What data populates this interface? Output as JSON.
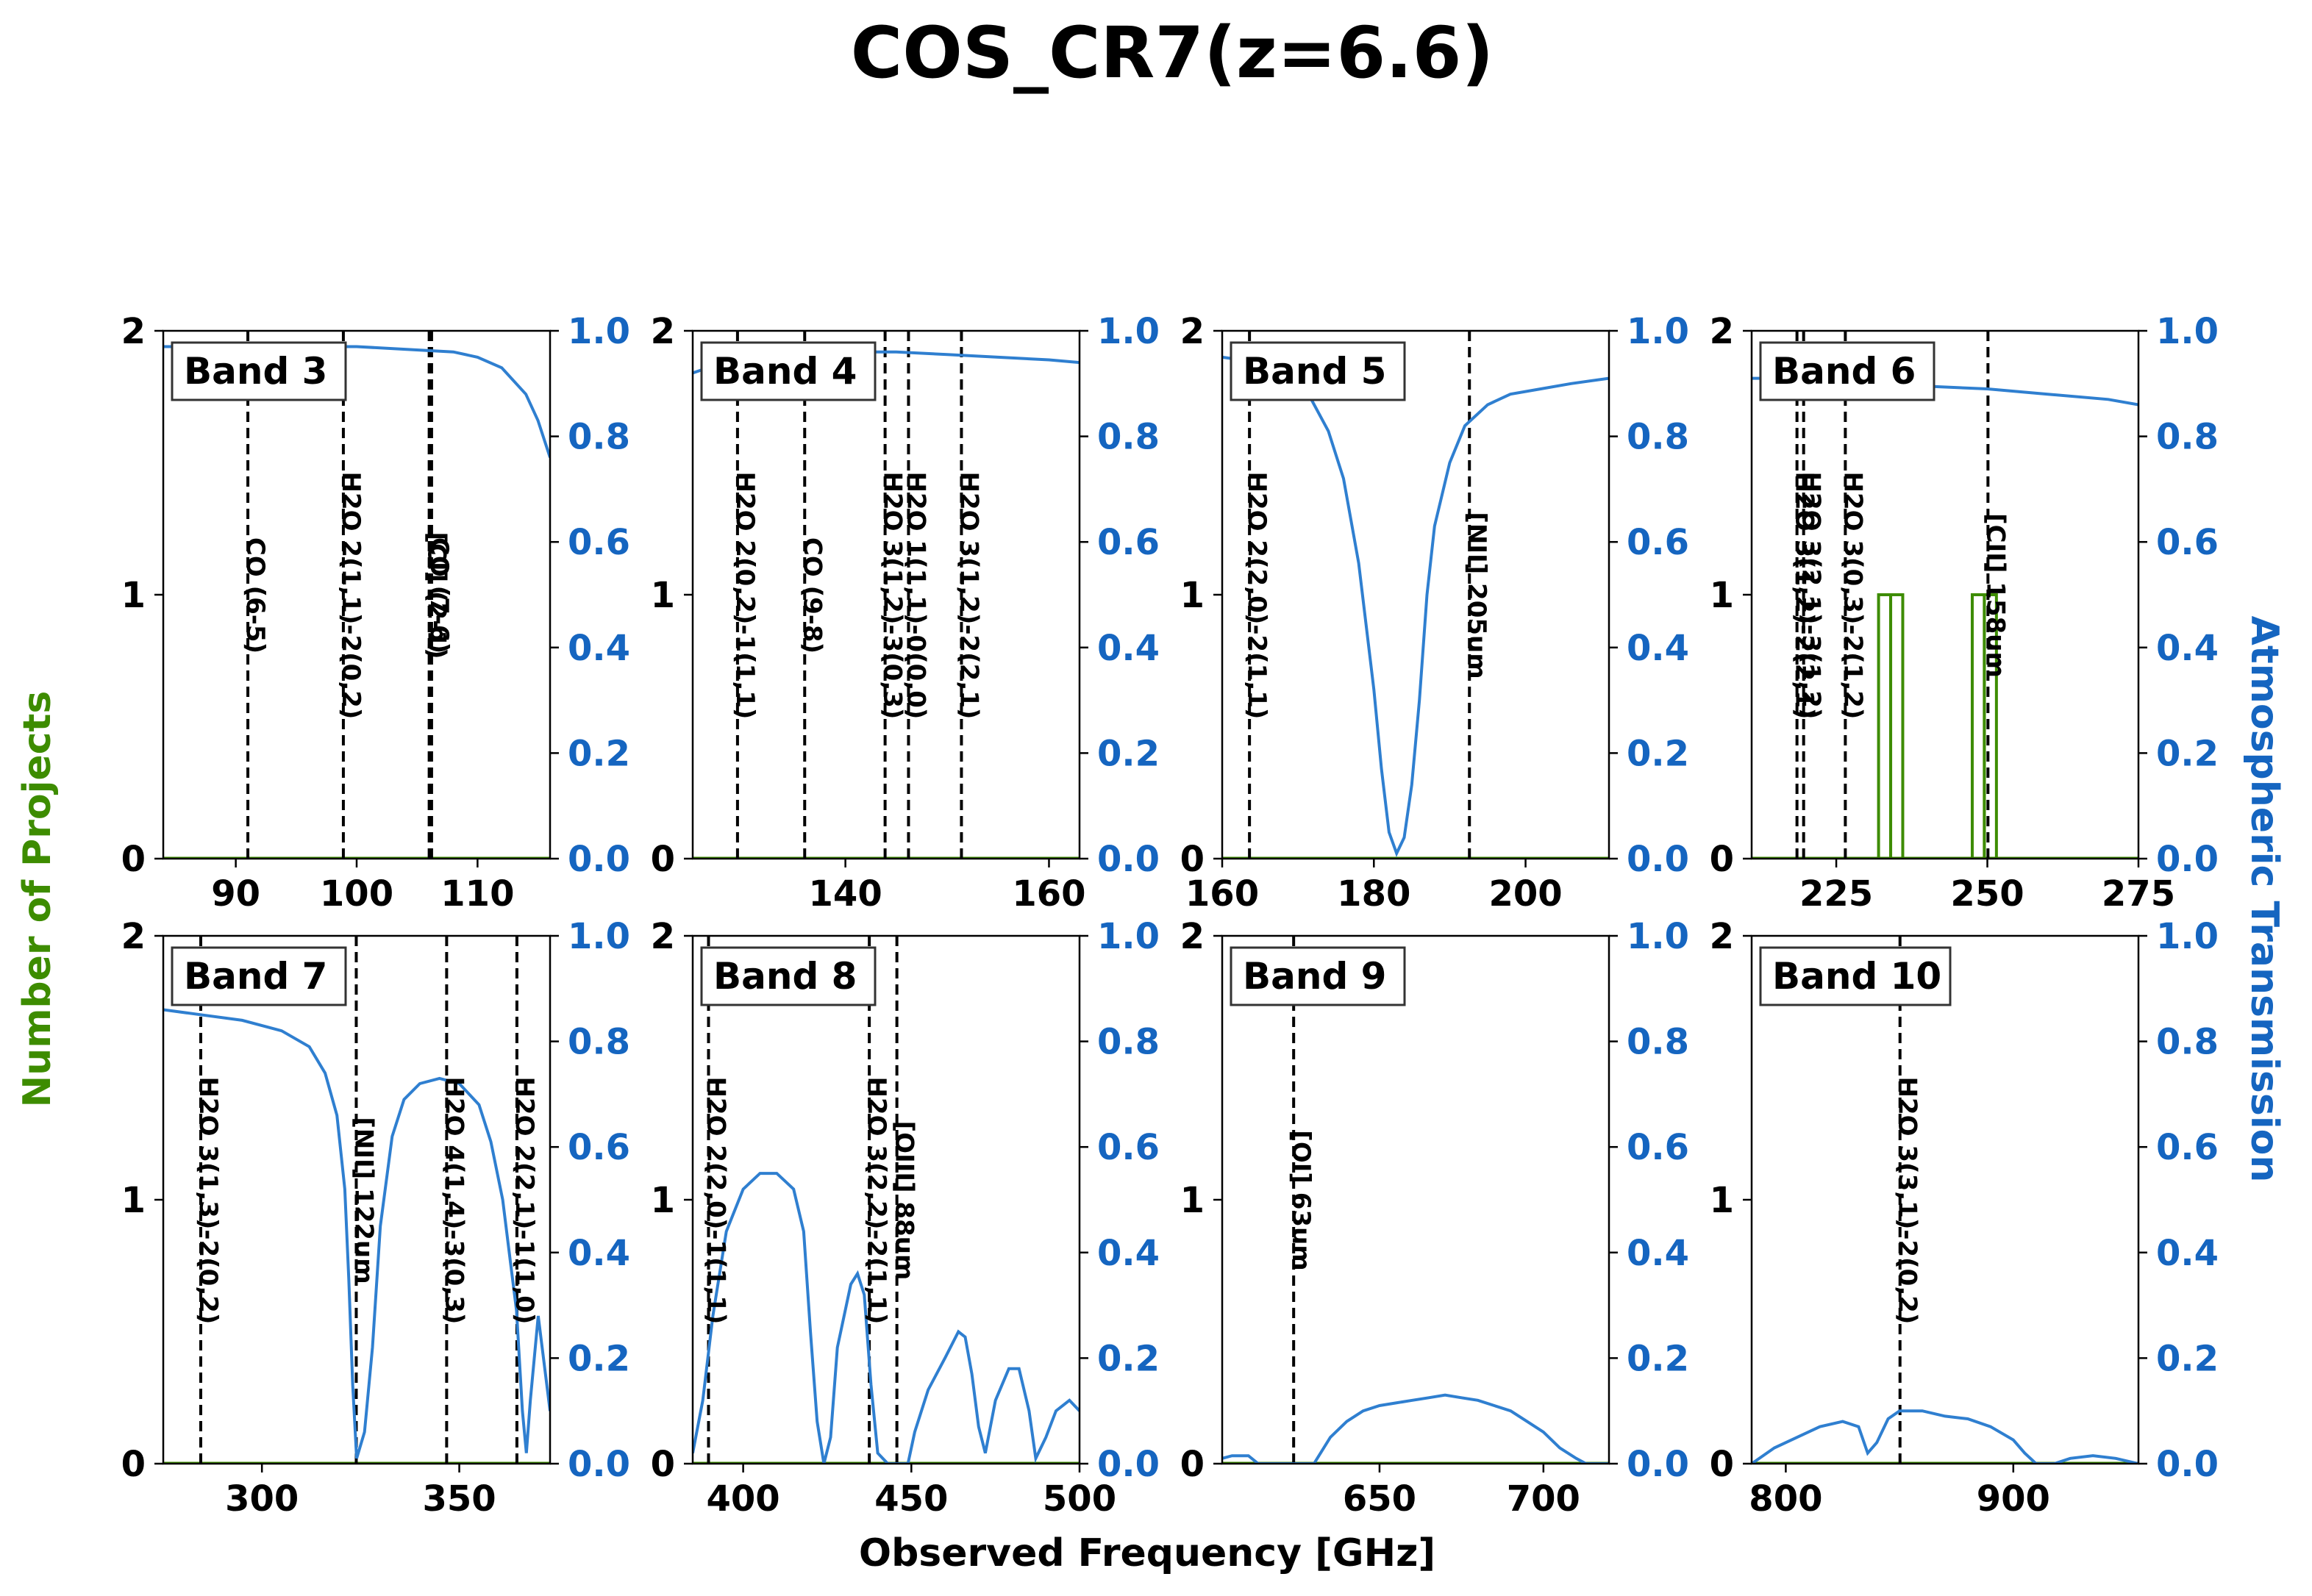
{
  "title": "COS_CR7(z=6.6)",
  "colors": {
    "projects": "#3d8c00",
    "transmission": "#2f7fd0",
    "right_axis": "#1565c0",
    "lines": "#000000"
  },
  "axes_labels": {
    "xlabel": "Observed Frequency [GHz]",
    "ylabel_left": "Number of Projects",
    "ylabel_right": "Atmospheric Transmission"
  },
  "chart_data": {
    "type": "line",
    "grid": false,
    "left_ylim": [
      0,
      2
    ],
    "left_yticks": [
      "0",
      "1",
      "2"
    ],
    "right_ylim": [
      0,
      1
    ],
    "right_yticks": [
      "0.0",
      "0.2",
      "0.4",
      "0.6",
      "0.8",
      "1.0"
    ],
    "panels": [
      {
        "band": "Band 3",
        "xlim": [
          84,
          116
        ],
        "xticks": [
          90,
          100,
          110
        ],
        "lines": [
          {
            "freq": 91.0,
            "label": "CO (6-5)"
          },
          {
            "freq": 98.9,
            "label": "H2O 2(1,1)-2(0,2)"
          },
          {
            "freq": 106.0,
            "label": "[CI] (2-1)"
          },
          {
            "freq": 106.2,
            "label": "CO (7-6)"
          }
        ],
        "projects": [],
        "transmission": [
          [
            84,
            0.97
          ],
          [
            90,
            0.97
          ],
          [
            95,
            0.97
          ],
          [
            100,
            0.97
          ],
          [
            104,
            0.965
          ],
          [
            108,
            0.96
          ],
          [
            110,
            0.95
          ],
          [
            112,
            0.93
          ],
          [
            114,
            0.88
          ],
          [
            115,
            0.83
          ],
          [
            116,
            0.76
          ]
        ]
      },
      {
        "band": "Band 4",
        "xlim": [
          125,
          163
        ],
        "xticks": [
          140,
          160
        ],
        "lines": [
          {
            "freq": 129.4,
            "label": "H2O 2(0,2)-1(1,1)"
          },
          {
            "freq": 136.0,
            "label": "CO (9-8)"
          },
          {
            "freq": 143.9,
            "label": "H2O 3(1,2)-3(0,3)"
          },
          {
            "freq": 146.2,
            "label": "H2O 1(1,1)-0(0,0)"
          },
          {
            "freq": 151.4,
            "label": "H2O 3(1,2)-2(2,1)"
          }
        ],
        "projects": [],
        "transmission": [
          [
            125,
            0.92
          ],
          [
            128,
            0.94
          ],
          [
            132,
            0.95
          ],
          [
            136,
            0.955
          ],
          [
            140,
            0.96
          ],
          [
            145,
            0.96
          ],
          [
            150,
            0.955
          ],
          [
            155,
            0.95
          ],
          [
            160,
            0.945
          ],
          [
            163,
            0.94
          ]
        ]
      },
      {
        "band": "Band 5",
        "xlim": [
          160,
          211
        ],
        "xticks": [
          160,
          180,
          200
        ],
        "lines": [
          {
            "freq": 163.6,
            "label": "H2O 2(2,0)-2(1,1)"
          },
          {
            "freq": 192.6,
            "label": "[NII] 205um"
          }
        ],
        "projects": [],
        "transmission": [
          [
            160,
            0.95
          ],
          [
            165,
            0.94
          ],
          [
            168,
            0.92
          ],
          [
            171,
            0.89
          ],
          [
            174,
            0.81
          ],
          [
            176,
            0.72
          ],
          [
            178,
            0.56
          ],
          [
            180,
            0.32
          ],
          [
            181,
            0.17
          ],
          [
            182,
            0.05
          ],
          [
            183,
            0.01
          ],
          [
            184,
            0.04
          ],
          [
            185,
            0.14
          ],
          [
            186,
            0.3
          ],
          [
            187,
            0.5
          ],
          [
            188,
            0.63
          ],
          [
            190,
            0.75
          ],
          [
            192,
            0.82
          ],
          [
            195,
            0.86
          ],
          [
            198,
            0.88
          ],
          [
            202,
            0.89
          ],
          [
            206,
            0.9
          ],
          [
            211,
            0.91
          ]
        ]
      },
      {
        "band": "Band 6",
        "xlim": [
          211,
          275
        ],
        "xticks": [
          225,
          250,
          275
        ],
        "lines": [
          {
            "freq": 218.5,
            "label": "H2O 3(1,2)-2(2,1)"
          },
          {
            "freq": 219.6,
            "label": "H2O 3(2,1)-3(1,2)"
          },
          {
            "freq": 226.5,
            "label": "H2O 3(0,3)-2(1,2)"
          },
          {
            "freq": 250.1,
            "label": "[CII] 158um"
          }
        ],
        "projects": [
          {
            "x0": 232.0,
            "x1": 234.0,
            "count": 1
          },
          {
            "x0": 234.0,
            "x1": 236.0,
            "count": 1
          },
          {
            "x0": 247.5,
            "x1": 249.5,
            "count": 1
          },
          {
            "x0": 249.5,
            "x1": 251.5,
            "count": 1
          }
        ],
        "transmission": [
          [
            211,
            0.91
          ],
          [
            220,
            0.91
          ],
          [
            230,
            0.9
          ],
          [
            240,
            0.895
          ],
          [
            250,
            0.89
          ],
          [
            260,
            0.88
          ],
          [
            270,
            0.87
          ],
          [
            275,
            0.86
          ]
        ]
      },
      {
        "band": "Band 7",
        "xlim": [
          275,
          373
        ],
        "xticks": [
          300,
          350
        ],
        "lines": [
          {
            "freq": 284.5,
            "label": "H2O 3(1,3)-2(0,2)"
          },
          {
            "freq": 323.9,
            "label": "[NII] 122um"
          },
          {
            "freq": 346.8,
            "label": "H2O 4(1,4)-3(0,3)"
          },
          {
            "freq": 364.6,
            "label": "H2O 2(2,1)-1(1,0)"
          }
        ],
        "projects": [],
        "transmission": [
          [
            275,
            0.86
          ],
          [
            285,
            0.85
          ],
          [
            295,
            0.84
          ],
          [
            305,
            0.82
          ],
          [
            312,
            0.79
          ],
          [
            316,
            0.74
          ],
          [
            319,
            0.66
          ],
          [
            321,
            0.52
          ],
          [
            322,
            0.35
          ],
          [
            323,
            0.15
          ],
          [
            324,
            0.01
          ],
          [
            326,
            0.06
          ],
          [
            328,
            0.22
          ],
          [
            330,
            0.45
          ],
          [
            333,
            0.62
          ],
          [
            336,
            0.69
          ],
          [
            340,
            0.72
          ],
          [
            345,
            0.73
          ],
          [
            350,
            0.72
          ],
          [
            355,
            0.68
          ],
          [
            358,
            0.61
          ],
          [
            361,
            0.5
          ],
          [
            363,
            0.38
          ],
          [
            364.5,
            0.29
          ],
          [
            366,
            0.1
          ],
          [
            367,
            0.02
          ],
          [
            368,
            0.12
          ],
          [
            370,
            0.28
          ],
          [
            373,
            0.1
          ]
        ]
      },
      {
        "band": "Band 8",
        "xlim": [
          385,
          500
        ],
        "xticks": [
          400,
          450,
          500
        ],
        "lines": [
          {
            "freq": 389.7,
            "label": "H2O 2(2,0)-1(1,1)"
          },
          {
            "freq": 437.5,
            "label": "H2O 3(2,2)-2(1,1)"
          },
          {
            "freq": 445.7,
            "label": "[OIII] 88um"
          }
        ],
        "projects": [],
        "transmission": [
          [
            385,
            0.02
          ],
          [
            388,
            0.12
          ],
          [
            391,
            0.28
          ],
          [
            395,
            0.44
          ],
          [
            400,
            0.52
          ],
          [
            405,
            0.55
          ],
          [
            410,
            0.55
          ],
          [
            415,
            0.52
          ],
          [
            418,
            0.44
          ],
          [
            420,
            0.25
          ],
          [
            422,
            0.08
          ],
          [
            424,
            0.0
          ],
          [
            426,
            0.05
          ],
          [
            428,
            0.22
          ],
          [
            432,
            0.34
          ],
          [
            434,
            0.36
          ],
          [
            436,
            0.32
          ],
          [
            438,
            0.15
          ],
          [
            440,
            0.02
          ],
          [
            443,
            0.0
          ],
          [
            449,
            0.0
          ],
          [
            451,
            0.06
          ],
          [
            455,
            0.14
          ],
          [
            460,
            0.2
          ],
          [
            464,
            0.25
          ],
          [
            466,
            0.24
          ],
          [
            468,
            0.17
          ],
          [
            470,
            0.07
          ],
          [
            472,
            0.02
          ],
          [
            475,
            0.12
          ],
          [
            479,
            0.18
          ],
          [
            482,
            0.18
          ],
          [
            485,
            0.1
          ],
          [
            487,
            0.01
          ],
          [
            490,
            0.05
          ],
          [
            493,
            0.1
          ],
          [
            497,
            0.12
          ],
          [
            500,
            0.1
          ]
        ]
      },
      {
        "band": "Band 9",
        "xlim": [
          602,
          720
        ],
        "xticks": [
          650,
          700
        ],
        "lines": [
          {
            "freq": 623.8,
            "label": "[OI] 63um"
          }
        ],
        "projects": [],
        "transmission": [
          [
            602,
            0.01
          ],
          [
            605,
            0.015
          ],
          [
            610,
            0.015
          ],
          [
            613,
            0.0
          ],
          [
            630,
            0.0
          ],
          [
            635,
            0.05
          ],
          [
            640,
            0.08
          ],
          [
            645,
            0.1
          ],
          [
            650,
            0.11
          ],
          [
            655,
            0.115
          ],
          [
            660,
            0.12
          ],
          [
            665,
            0.125
          ],
          [
            670,
            0.13
          ],
          [
            675,
            0.125
          ],
          [
            680,
            0.12
          ],
          [
            685,
            0.11
          ],
          [
            690,
            0.1
          ],
          [
            695,
            0.08
          ],
          [
            700,
            0.06
          ],
          [
            705,
            0.03
          ],
          [
            710,
            0.01
          ],
          [
            713,
            0.0
          ],
          [
            720,
            0.0
          ]
        ]
      },
      {
        "band": "Band 10",
        "xlim": [
          785,
          955
        ],
        "xticks": [
          800,
          900
        ],
        "lines": [
          {
            "freq": 850.2,
            "label": "H2O 3(3,1)-2(0,2)"
          }
        ],
        "projects": [],
        "transmission": [
          [
            785,
            0.0
          ],
          [
            795,
            0.03
          ],
          [
            805,
            0.05
          ],
          [
            815,
            0.07
          ],
          [
            825,
            0.08
          ],
          [
            832,
            0.07
          ],
          [
            836,
            0.02
          ],
          [
            840,
            0.04
          ],
          [
            845,
            0.085
          ],
          [
            850,
            0.1
          ],
          [
            860,
            0.1
          ],
          [
            870,
            0.09
          ],
          [
            880,
            0.085
          ],
          [
            890,
            0.07
          ],
          [
            900,
            0.045
          ],
          [
            905,
            0.02
          ],
          [
            910,
            0.0
          ],
          [
            918,
            0.0
          ],
          [
            925,
            0.01
          ],
          [
            935,
            0.015
          ],
          [
            945,
            0.01
          ],
          [
            955,
            0.0
          ]
        ]
      }
    ]
  }
}
